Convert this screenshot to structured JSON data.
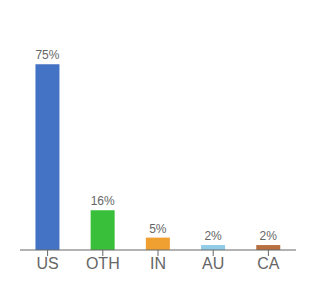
{
  "chart_data": {
    "type": "bar",
    "categories": [
      "US",
      "OTH",
      "IN",
      "AU",
      "CA"
    ],
    "values": [
      75,
      16,
      5,
      2,
      2
    ],
    "value_labels": [
      "75%",
      "16%",
      "5%",
      "2%",
      "2%"
    ],
    "data_labels": true,
    "colors": [
      "#4472c4",
      "#3abf3a",
      "#f0a030",
      "#90cce8",
      "#b87040"
    ],
    "ylim": [
      0,
      88
    ],
    "grid": false,
    "tick_labels": "x"
  }
}
